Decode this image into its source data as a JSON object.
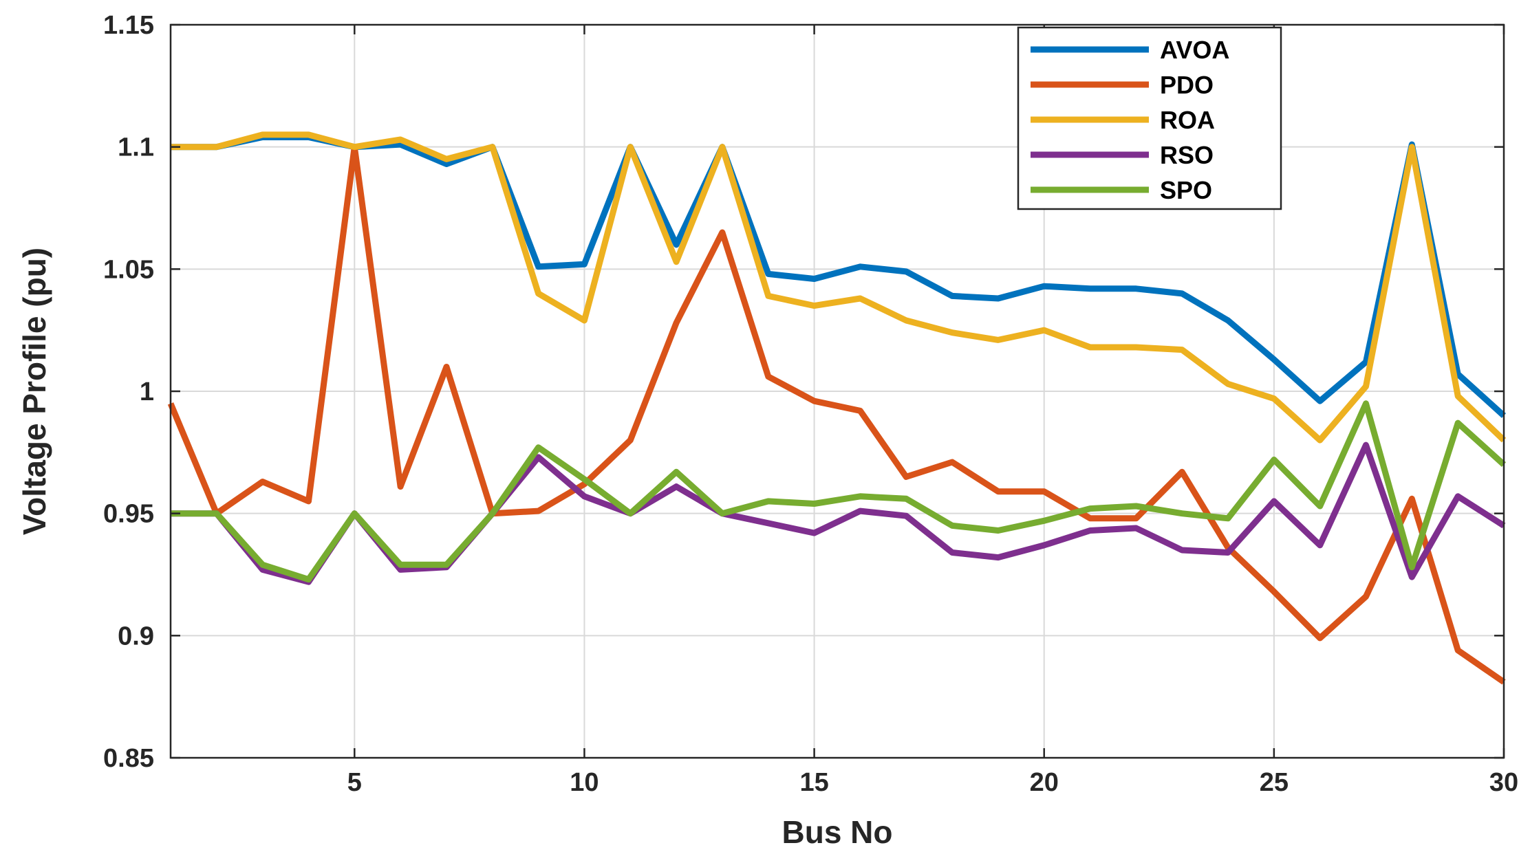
{
  "chart_data": {
    "type": "line",
    "xlabel": "Bus No",
    "ylabel": "Voltage Profile (pu)",
    "xlim": [
      1,
      30
    ],
    "ylim": [
      0.85,
      1.15
    ],
    "xticks": [
      5,
      10,
      15,
      20,
      25,
      30
    ],
    "yticks": [
      0.85,
      0.9,
      0.95,
      1,
      1.05,
      1.1,
      1.15
    ],
    "ytick_labels": [
      "0.85",
      "0.9",
      "0.95",
      "1",
      "1.05",
      "1.1",
      "1.15"
    ],
    "grid": true,
    "legend_position": "top-right",
    "x": [
      1,
      2,
      3,
      4,
      5,
      6,
      7,
      8,
      9,
      10,
      11,
      12,
      13,
      14,
      15,
      16,
      17,
      18,
      19,
      20,
      21,
      22,
      23,
      24,
      25,
      26,
      27,
      28,
      29,
      30
    ],
    "series": [
      {
        "name": "AVOA",
        "color": "#0072BD",
        "values": [
          1.1,
          1.1,
          1.104,
          1.104,
          1.1,
          1.101,
          1.093,
          1.1,
          1.051,
          1.052,
          1.1,
          1.06,
          1.1,
          1.048,
          1.046,
          1.051,
          1.049,
          1.039,
          1.038,
          1.043,
          1.042,
          1.042,
          1.04,
          1.029,
          1.013,
          0.996,
          1.012,
          1.101,
          1.007,
          0.99
        ]
      },
      {
        "name": "PDO",
        "color": "#D95319",
        "values": [
          0.995,
          0.95,
          0.963,
          0.955,
          1.1,
          0.961,
          1.01,
          0.95,
          0.951,
          0.962,
          0.98,
          1.028,
          1.065,
          1.006,
          0.996,
          0.992,
          0.965,
          0.971,
          0.959,
          0.959,
          0.948,
          0.948,
          0.967,
          0.936,
          0.918,
          0.899,
          0.916,
          0.956,
          0.894,
          0.881
        ]
      },
      {
        "name": "ROA",
        "color": "#EDB120",
        "values": [
          1.1,
          1.1,
          1.105,
          1.105,
          1.1,
          1.103,
          1.095,
          1.1,
          1.04,
          1.029,
          1.1,
          1.053,
          1.1,
          1.039,
          1.035,
          1.038,
          1.029,
          1.024,
          1.021,
          1.025,
          1.018,
          1.018,
          1.017,
          1.003,
          0.997,
          0.98,
          1.002,
          1.1,
          0.998,
          0.98
        ]
      },
      {
        "name": "RSO",
        "color": "#7E2F8E",
        "values": [
          0.95,
          0.95,
          0.927,
          0.922,
          0.95,
          0.927,
          0.928,
          0.95,
          0.973,
          0.957,
          0.95,
          0.961,
          0.95,
          0.946,
          0.942,
          0.951,
          0.949,
          0.934,
          0.932,
          0.937,
          0.943,
          0.944,
          0.935,
          0.934,
          0.955,
          0.937,
          0.978,
          0.924,
          0.957,
          0.945
        ]
      },
      {
        "name": "SPO",
        "color": "#77AC30",
        "values": [
          0.95,
          0.95,
          0.929,
          0.923,
          0.95,
          0.929,
          0.929,
          0.95,
          0.977,
          0.964,
          0.95,
          0.967,
          0.95,
          0.955,
          0.954,
          0.957,
          0.956,
          0.945,
          0.943,
          0.947,
          0.952,
          0.953,
          0.95,
          0.948,
          0.972,
          0.953,
          0.995,
          0.928,
          0.987,
          0.97
        ]
      }
    ]
  }
}
